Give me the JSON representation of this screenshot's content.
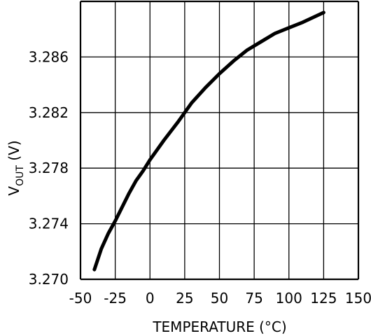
{
  "chart_data": {
    "type": "line",
    "title": "",
    "xlabel": "TEMPERATURE (°C)",
    "ylabel": {
      "main": "V",
      "subscript": "OUT",
      "unit": "(V)"
    },
    "xlim": [
      -50,
      150
    ],
    "ylim": [
      3.27,
      3.29
    ],
    "x_ticks": [
      "-50",
      "-25",
      "0",
      "25",
      "50",
      "75",
      "100",
      "125",
      "150"
    ],
    "y_ticks": [
      "3.270",
      "3.274",
      "3.278",
      "3.282",
      "3.286"
    ],
    "grid": true,
    "series": [
      {
        "color": "#000000",
        "points": [
          {
            "x": -40,
            "y": 3.2707
          },
          {
            "x": -35,
            "y": 3.2722
          },
          {
            "x": -30,
            "y": 3.2733
          },
          {
            "x": -25,
            "y": 3.2742
          },
          {
            "x": -20,
            "y": 3.2752
          },
          {
            "x": -15,
            "y": 3.2762
          },
          {
            "x": -10,
            "y": 3.2771
          },
          {
            "x": -5,
            "y": 3.2778
          },
          {
            "x": 0,
            "y": 3.2786
          },
          {
            "x": 10,
            "y": 3.28
          },
          {
            "x": 20,
            "y": 3.2813
          },
          {
            "x": 30,
            "y": 3.2827
          },
          {
            "x": 40,
            "y": 3.2838
          },
          {
            "x": 50,
            "y": 3.2848
          },
          {
            "x": 60,
            "y": 3.2857
          },
          {
            "x": 70,
            "y": 3.2865
          },
          {
            "x": 80,
            "y": 3.2871
          },
          {
            "x": 90,
            "y": 3.2877
          },
          {
            "x": 100,
            "y": 3.2881
          },
          {
            "x": 110,
            "y": 3.2885
          },
          {
            "x": 125,
            "y": 3.2892
          }
        ]
      }
    ]
  }
}
